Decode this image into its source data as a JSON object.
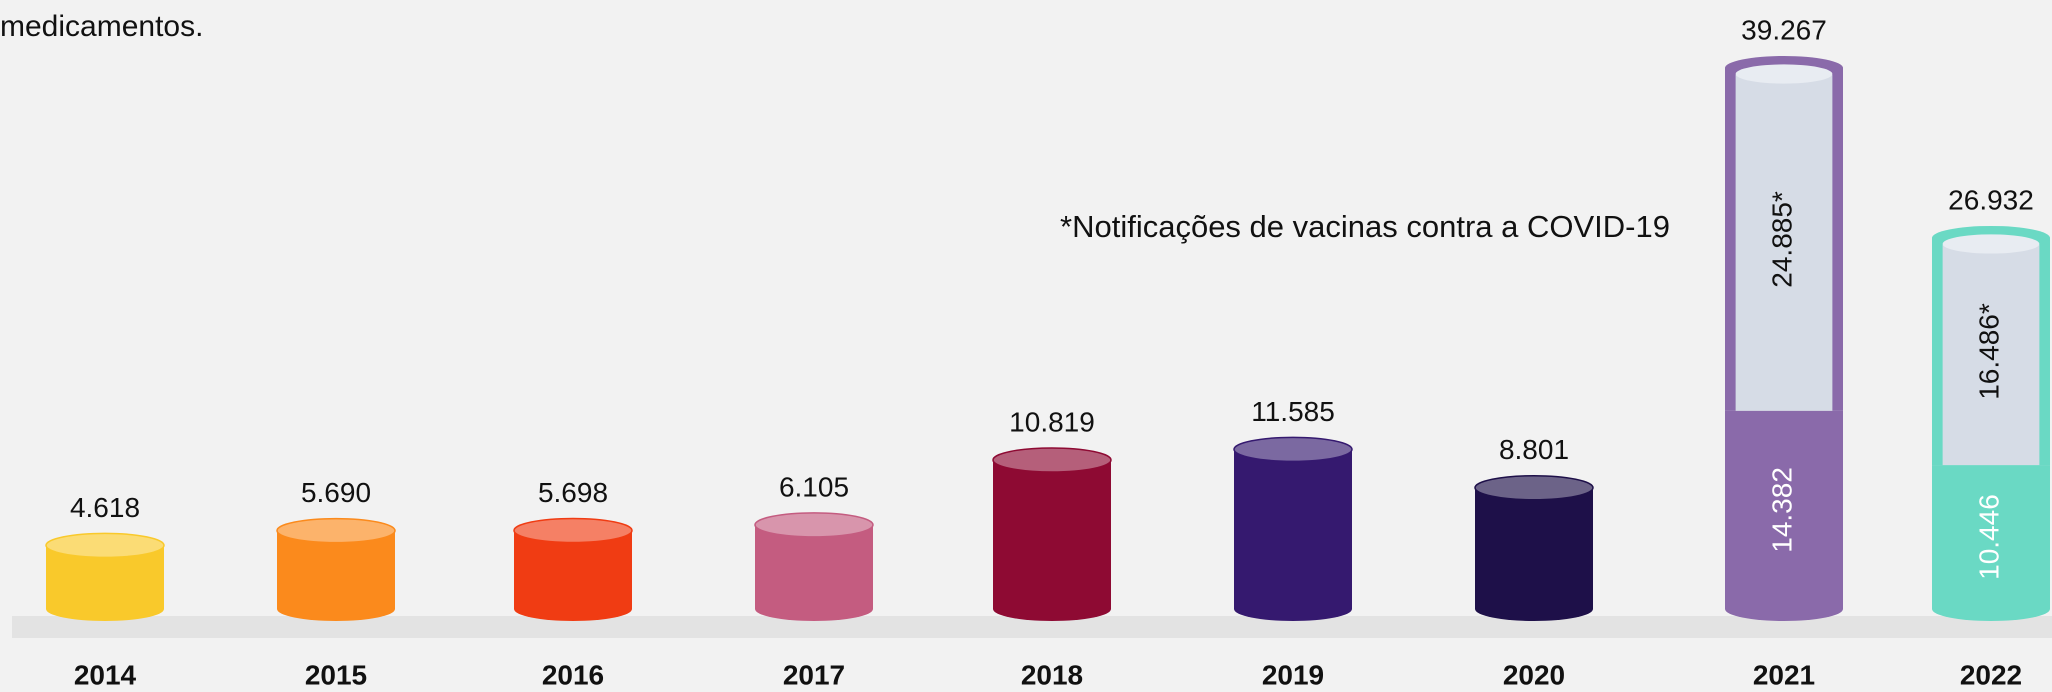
{
  "chart_data": {
    "type": "bar",
    "intro_text": "medicamentos.",
    "annotation": "*Notificações de vacinas contra a COVID-19",
    "categories": [
      "2014",
      "2015",
      "2016",
      "2017",
      "2018",
      "2019",
      "2020",
      "2021",
      "2022"
    ],
    "colors": [
      "#f9c92b",
      "#fb8a1c",
      "#f03c13",
      "#c45c80",
      "#8e0a33",
      "#35196f",
      "#1e1049",
      "#8a6aaa",
      "#6ad9c4"
    ],
    "series": [
      {
        "values": [
          4618,
          5690,
          5698,
          6105,
          10819,
          11585,
          8801,
          14382,
          10446
        ],
        "value_labels": [
          "4.618",
          "5.690",
          "5.698",
          "6.105",
          "10.819",
          "11.585",
          "8.801",
          "14.382",
          "10.446"
        ]
      },
      {
        "color": "#d6dce6",
        "values": [
          null,
          null,
          null,
          null,
          null,
          null,
          null,
          24885,
          16486
        ],
        "value_labels": [
          null,
          null,
          null,
          null,
          null,
          null,
          null,
          "24.885*",
          "16.486*"
        ]
      }
    ],
    "totals": [
      null,
      null,
      null,
      null,
      null,
      null,
      null,
      39267,
      26932
    ],
    "total_labels": [
      null,
      null,
      null,
      null,
      null,
      null,
      null,
      "39.267",
      "26.932"
    ]
  }
}
